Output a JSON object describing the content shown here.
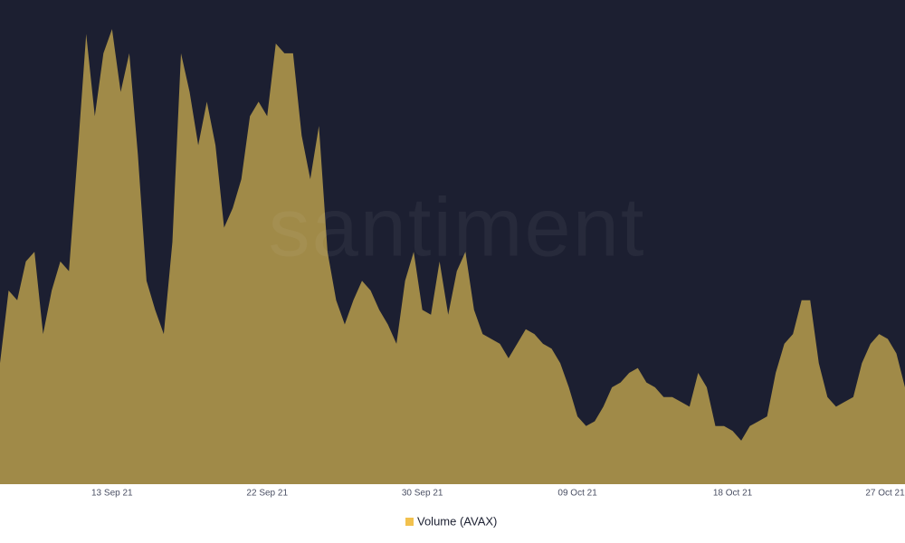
{
  "chart_data": {
    "type": "area",
    "watermark": "santiment",
    "categories": [
      null,
      null,
      null,
      null,
      null,
      null,
      null,
      null,
      null,
      null,
      null,
      null,
      null,
      "13 Sep 21",
      null,
      null,
      null,
      null,
      null,
      null,
      null,
      null,
      null,
      null,
      null,
      null,
      null,
      null,
      null,
      null,
      null,
      "22 Sep 21",
      null,
      null,
      null,
      null,
      null,
      null,
      null,
      null,
      null,
      null,
      null,
      null,
      null,
      null,
      null,
      null,
      null,
      "30 Sep 21",
      null,
      null,
      null,
      null,
      null,
      null,
      null,
      null,
      null,
      null,
      null,
      null,
      null,
      null,
      null,
      null,
      null,
      "09 Oct 21",
      null,
      null,
      null,
      null,
      null,
      null,
      null,
      null,
      null,
      null,
      null,
      null,
      null,
      null,
      null,
      null,
      null,
      "18 Oct 21",
      null,
      null,
      null,
      null,
      null,
      null,
      null,
      null,
      null,
      null,
      null,
      null,
      null,
      null,
      null,
      null,
      null,
      "27 Oct 21",
      null,
      null
    ],
    "series": [
      {
        "name": "Volume (AVAX)",
        "color": "#a08a48",
        "legend_color": "#f2c14e",
        "values": [
          25,
          40,
          38,
          46,
          48,
          31,
          40,
          46,
          44,
          68,
          93,
          76,
          89,
          94,
          81,
          89,
          68,
          42,
          36,
          31,
          50,
          89,
          81,
          70,
          79,
          70,
          53,
          57,
          63,
          76,
          79,
          76,
          91,
          89,
          89,
          72,
          63,
          74,
          48,
          38,
          33,
          38,
          42,
          40,
          36,
          33,
          29,
          42,
          48,
          36,
          35,
          46,
          35,
          44,
          48,
          36,
          31,
          30,
          29,
          26,
          29,
          32,
          31,
          29,
          28,
          25,
          20,
          14,
          12,
          13,
          16,
          20,
          21,
          23,
          24,
          21,
          20,
          18,
          18,
          17,
          16,
          23,
          20,
          12,
          12,
          11,
          9,
          12,
          13,
          14,
          23,
          29,
          31,
          38,
          38,
          25,
          18,
          16,
          17,
          18,
          25,
          29,
          31,
          30,
          27,
          20
        ]
      }
    ],
    "ylim": [
      0,
      100
    ],
    "background": "#1c1f31"
  }
}
